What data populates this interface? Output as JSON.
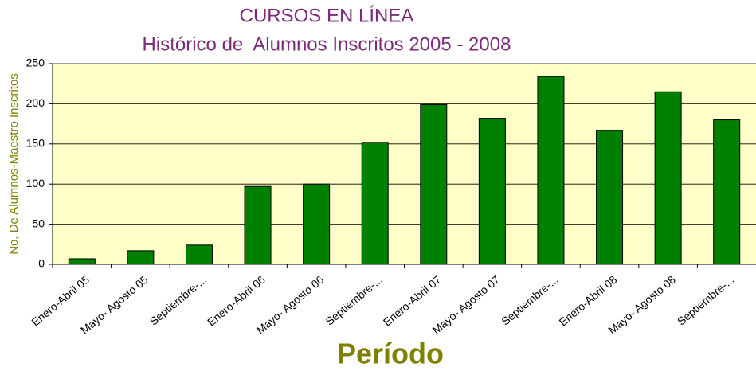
{
  "chart_data": {
    "type": "bar",
    "title": "CURSOS EN LÍNEA",
    "subtitle": "Histórico de  Alumnos Inscritos 2005 - 2008",
    "y_label": "No. De Alumnos-Maestro Inscritos",
    "x_label": "Período",
    "categories": [
      "Enero-Abril 05",
      "Mayo- Agosto 05",
      "Septiembre-...",
      "Enero-Abril 06",
      "Mayo- Agosto 06",
      "Septiembre-...",
      "Enero-Abril 07",
      "Mayo- Agosto 07",
      "Septiembre-...",
      "Enero-Abril 08",
      "Mayo- Agosto 08",
      "Septiembre-..."
    ],
    "values": [
      7,
      17,
      24,
      97,
      100,
      152,
      199,
      182,
      234,
      167,
      215,
      180
    ],
    "color": "#008000",
    "ylim": [
      0,
      250
    ],
    "yticks": [
      0,
      50,
      100,
      150,
      200,
      250
    ],
    "grid": true
  }
}
